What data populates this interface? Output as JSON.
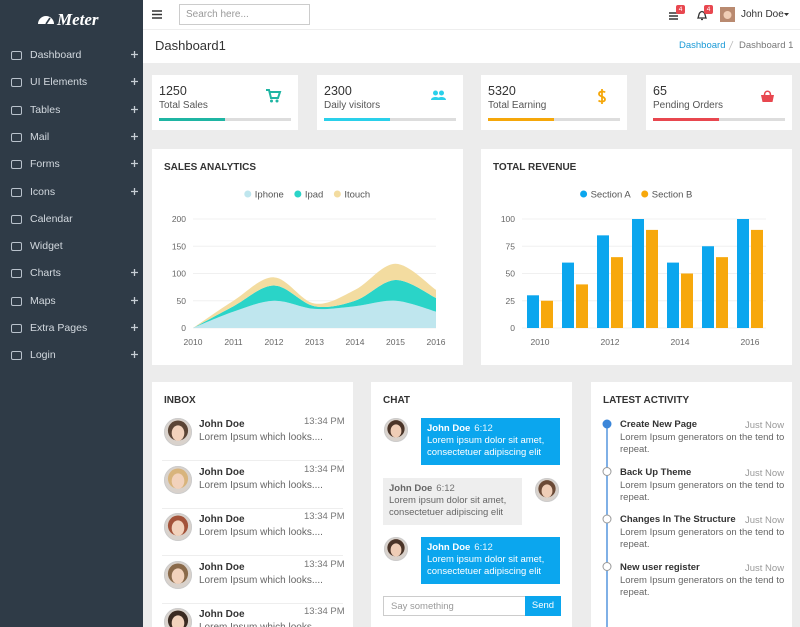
{
  "brand": "Meter",
  "sidebar": [
    {
      "label": "Dashboard",
      "expandable": true
    },
    {
      "label": "UI Elements",
      "expandable": true
    },
    {
      "label": "Tables",
      "expandable": true
    },
    {
      "label": "Mail",
      "expandable": true
    },
    {
      "label": "Forms",
      "expandable": true
    },
    {
      "label": "Icons",
      "expandable": true
    },
    {
      "label": "Calendar",
      "expandable": false
    },
    {
      "label": "Widget",
      "expandable": false
    },
    {
      "label": "Charts",
      "expandable": true
    },
    {
      "label": "Maps",
      "expandable": true
    },
    {
      "label": "Extra Pages",
      "expandable": true
    },
    {
      "label": "Login",
      "expandable": true
    }
  ],
  "header": {
    "search_placeholder": "Search here...",
    "badges": [
      "4",
      "4"
    ],
    "user": "John Doe"
  },
  "page_header": {
    "title": "Dashboard1",
    "breadcrumb": [
      "Dashboard",
      "Dashboard 1"
    ]
  },
  "stats": [
    {
      "value": 1250,
      "label": "Total Sales",
      "color": "#1fb5a3",
      "progress": 50
    },
    {
      "value": 2300,
      "label": "Daily visitors",
      "color": "#2ad0ea",
      "progress": 50
    },
    {
      "value": 5320,
      "label": "Total Earning",
      "color": "#f5a70a",
      "progress": 50
    },
    {
      "value": 65,
      "label": "Pending Orders",
      "color": "#e8474f",
      "progress": 50
    }
  ],
  "chart_data": [
    {
      "type": "area",
      "title": "SALES ANALYTICS",
      "stacked": true,
      "grid": true,
      "categories": [
        "2010",
        "2011",
        "2012",
        "2013",
        "2014",
        "2015",
        "2016"
      ],
      "ylim": [
        0,
        200
      ],
      "yticks": [
        0,
        50,
        100,
        150,
        200
      ],
      "series": [
        {
          "name": "Iphone",
          "color": "#bfe6ee",
          "values": [
            0,
            30,
            50,
            35,
            40,
            50,
            30
          ]
        },
        {
          "name": "Ipad",
          "color": "#2ad4c8",
          "values": [
            0,
            10,
            28,
            5,
            10,
            38,
            25
          ]
        },
        {
          "name": "Itouch",
          "color": "#f3dca0",
          "values": [
            0,
            10,
            15,
            5,
            20,
            30,
            15
          ]
        }
      ]
    },
    {
      "type": "bar",
      "title": "TOTAL REVENUE",
      "grid": true,
      "categories": [
        "2010",
        null,
        "2012",
        null,
        "2014",
        null,
        "2016"
      ],
      "ylim": [
        0,
        100
      ],
      "yticks": [
        0,
        25,
        50,
        75,
        100
      ],
      "series": [
        {
          "name": "Section A",
          "color": "#0ba6ee",
          "values": [
            30,
            60,
            85,
            100,
            60,
            75,
            100
          ]
        },
        {
          "name": "Section B",
          "color": "#f7a80c",
          "values": [
            25,
            40,
            65,
            90,
            50,
            65,
            90
          ]
        }
      ]
    }
  ],
  "inbox": {
    "title": "INBOX",
    "items": [
      {
        "name": "John Doe",
        "preview": "Lorem Ipsum which looks....",
        "time": "13:34 PM"
      },
      {
        "name": "John Doe",
        "preview": "Lorem Ipsum which looks....",
        "time": "13:34 PM"
      },
      {
        "name": "John Doe",
        "preview": "Lorem Ipsum which looks....",
        "time": "13:34 PM"
      },
      {
        "name": "John Doe",
        "preview": "Lorem Ipsum which looks....",
        "time": "13:34 PM"
      },
      {
        "name": "John Doe",
        "preview": "Lorem Ipsum which looks....",
        "time": "13:34 PM"
      }
    ]
  },
  "chat": {
    "title": "CHAT",
    "messages": [
      {
        "name": "John Doe",
        "time": "6:12",
        "text": "Lorem ipsum dolor sit amet, consectetuer adipiscing elit"
      },
      {
        "name": "John Doe",
        "time": "6:12",
        "text": "Lorem ipsum dolor sit amet, consectetuer adipiscing elit"
      },
      {
        "name": "John Doe",
        "time": "6:12",
        "text": "Lorem ipsum dolor sit amet, consectetuer adipiscing elit"
      }
    ],
    "input_placeholder": "Say something",
    "send": "Send"
  },
  "activity": {
    "title": "LATEST ACTIVITY",
    "items": [
      {
        "title": "Create New Page",
        "time": "Just Now",
        "text": "Lorem Ipsum generators on the tend to repeat."
      },
      {
        "title": "Back Up Theme",
        "time": "Just Now",
        "text": "Lorem Ipsum generators on the tend to repeat."
      },
      {
        "title": "Changes In The Structure",
        "time": "Just Now",
        "text": "Lorem Ipsum generators on the tend to repeat."
      },
      {
        "title": "New user register",
        "time": "Just Now",
        "text": "Lorem Ipsum generators on the tend to repeat."
      }
    ]
  }
}
